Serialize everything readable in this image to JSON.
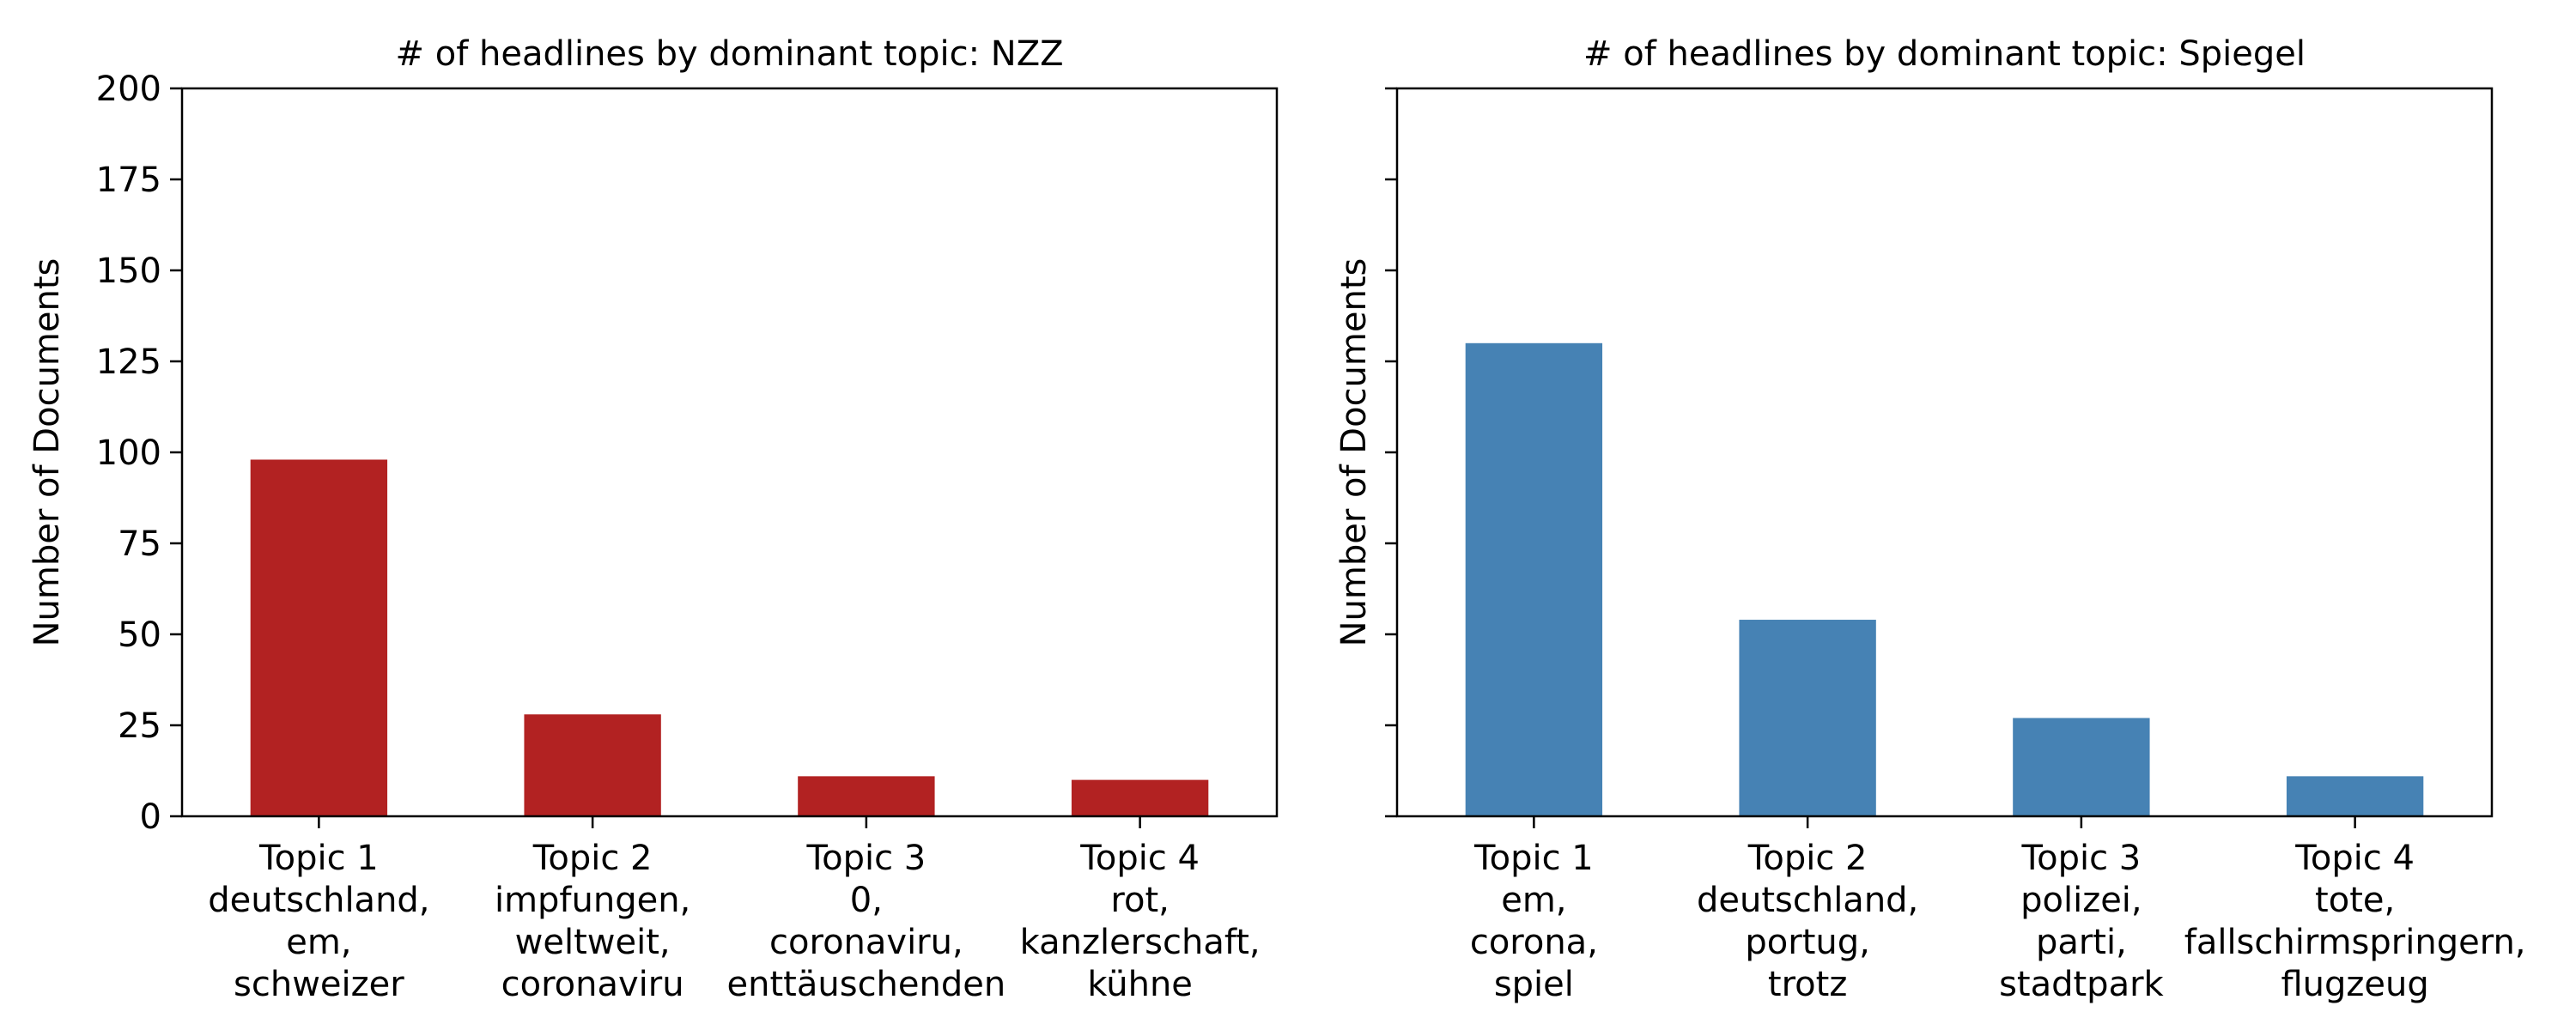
{
  "chart_data": [
    {
      "type": "bar",
      "title": "# of headlines by dominant topic: NZZ",
      "ylabel": "Number of Documents",
      "xlabel": "",
      "ylim": [
        0,
        200
      ],
      "yticks": [
        "0",
        "25",
        "50",
        "75",
        "100",
        "125",
        "150",
        "175",
        "200"
      ],
      "show_ytick_labels": true,
      "color": "#b22222",
      "grid": false,
      "categories": [
        [
          "Topic 1",
          "deutschland,",
          "em,",
          "schweizer"
        ],
        [
          "Topic 2",
          "impfungen,",
          "weltweit,",
          "coronaviru"
        ],
        [
          "Topic 3",
          "0,",
          "coronaviru,",
          "enttäuschenden"
        ],
        [
          "Topic 4",
          "rot,",
          "kanzlerschaft,",
          "kühne"
        ]
      ],
      "values": [
        98,
        28,
        11,
        10
      ]
    },
    {
      "type": "bar",
      "title": "# of headlines by dominant topic: Spiegel",
      "ylabel": "Number of Documents",
      "xlabel": "",
      "ylim": [
        0,
        200
      ],
      "yticks": [
        "0",
        "25",
        "50",
        "75",
        "100",
        "125",
        "150",
        "175",
        "200"
      ],
      "show_ytick_labels": false,
      "color": "#4682b4",
      "grid": false,
      "categories": [
        [
          "Topic 1",
          "em,",
          "corona,",
          "spiel"
        ],
        [
          "Topic 2",
          "deutschland,",
          "portug,",
          "trotz"
        ],
        [
          "Topic 3",
          "polizei,",
          "parti,",
          "stadtpark"
        ],
        [
          "Topic 4",
          "tote,",
          "fallschirmspringern,",
          "flugzeug"
        ]
      ],
      "values": [
        130,
        54,
        27,
        11
      ]
    }
  ]
}
